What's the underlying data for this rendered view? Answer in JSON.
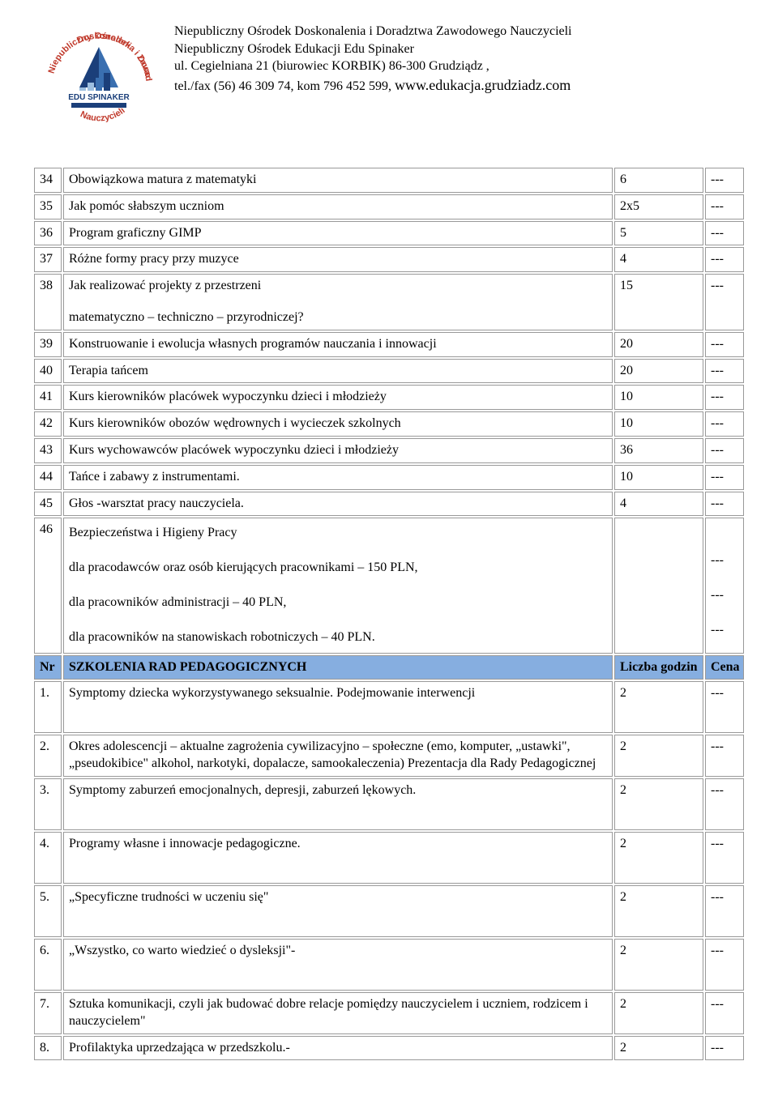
{
  "header": {
    "line1": "Niepubliczny Ośrodek Doskonalenia i Doradztwa Zawodowego Nauczycieli",
    "line2": "Niepubliczny Ośrodek Edukacji Edu Spinaker",
    "line3": "ul. Cegielniana 21 (biurowiec KORBIK) 86-300 Grudziądz ,",
    "line4_a": "tel./fax (56) 46 309 74, kom 796 452 599, ",
    "line4_b": "www.edukacja.grudziadz.com",
    "logo_top": "EDU SPINAKER",
    "logo_arc_top": "Doskonalenia i Doradztwa",
    "logo_arc_left": "Niepubliczny Ośrodek",
    "logo_arc_right": "Zawodowego",
    "logo_arc_bottom": "Nauczycieli"
  },
  "colors": {
    "section_bg": "#86aee0",
    "border": "#999999",
    "logo_blue_dark": "#1b3f7a",
    "logo_blue_mid": "#3a6fb0",
    "logo_blue_light": "#9dbfe0",
    "logo_text_red": "#c0392b"
  },
  "dash": "---",
  "rows1": [
    {
      "n": "34",
      "t": "Obowiązkowa matura z matematyki",
      "h": "6",
      "c": "---"
    },
    {
      "n": "35",
      "t": "Jak pomóc słabszym uczniom",
      "h": "2x5",
      "c": "---"
    },
    {
      "n": "36",
      "t": "Program graficzny GIMP",
      "h": "5",
      "c": "---"
    },
    {
      "n": "37",
      "t": "Różne formy pracy przy muzyce",
      "h": "4",
      "c": "---"
    }
  ],
  "row38": {
    "n": "38",
    "t1": "Jak realizować projekty z przestrzeni",
    "t2": "matematyczno – techniczno – przyrodniczej?",
    "h": "15",
    "c": "---"
  },
  "rows2": [
    {
      "n": "39",
      "t": "Konstruowanie i ewolucja własnych programów nauczania i innowacji",
      "h": "20",
      "c": "---"
    },
    {
      "n": "40",
      "t": "Terapia tańcem",
      "h": "20",
      "c": "---"
    },
    {
      "n": "41",
      "t": "Kurs kierowników placówek wypoczynku dzieci i młodzieży",
      "h": "10",
      "c": "---"
    },
    {
      "n": "42",
      "t": "Kurs kierowników obozów wędrownych i wycieczek szkolnych",
      "h": "10",
      "c": "---"
    },
    {
      "n": "43",
      "t": "Kurs wychowawców placówek wypoczynku dzieci i młodzieży",
      "h": "36",
      "c": "---"
    },
    {
      "n": "44",
      "t": "Tańce i zabawy z instrumentami.",
      "h": "10",
      "c": "---"
    },
    {
      "n": "45",
      "t": "Głos -warsztat pracy nauczyciela.",
      "h": "4",
      "c": "---"
    }
  ],
  "row46": {
    "n": "46",
    "t0": "Bezpieczeństwa i Higieny Pracy",
    "t1": "dla pracodawców oraz osób kierujących pracownikami – 150 PLN,",
    "t2": "dla pracowników administracji – 40 PLN,",
    "t3": "dla pracowników na stanowiskach robotniczych – 40 PLN.",
    "c1": "---",
    "c2": "---",
    "c3": "---"
  },
  "section": {
    "nr": "Nr",
    "title": "SZKOLENIA RAD PEDAGOGICZNYCH",
    "h": "Liczba godzin",
    "c": "Cena"
  },
  "rows3": [
    {
      "n": "1.",
      "t": "Symptomy dziecka wykorzystywanego seksualnie. Podejmowanie interwencji",
      "h": "2",
      "c": "---"
    },
    {
      "n": "2.",
      "t": "Okres adolescencji – aktualne zagrożenia cywilizacyjno – społeczne (emo, komputer, „ustawki\", „pseudokibice\" alkohol, narkotyki, dopalacze, samookaleczenia) Prezentacja dla Rady Pedagogicznej",
      "h": "2",
      "c": "---"
    },
    {
      "n": "3.",
      "t": "Symptomy zaburzeń emocjonalnych, depresji, zaburzeń lękowych.",
      "h": "2",
      "c": "---"
    },
    {
      "n": "4.",
      "t": "Programy własne i innowacje pedagogiczne.",
      "h": "2",
      "c": "---"
    },
    {
      "n": "5.",
      "t": "„Specyficzne trudności w uczeniu się\"",
      "h": "2",
      "c": "---"
    },
    {
      "n": "6.",
      "t": "„Wszystko, co warto wiedzieć o dysleksji\"-",
      "h": "2",
      "c": "---"
    },
    {
      "n": "7.",
      "t": "Sztuka komunikacji, czyli jak budować dobre relacje pomiędzy nauczycielem i uczniem, rodzicem i nauczycielem\"",
      "h": "2",
      "c": "---"
    },
    {
      "n": "8.",
      "t": "Profilaktyka uprzedzająca w przedszkolu.-",
      "h": "2",
      "c": "---"
    }
  ]
}
